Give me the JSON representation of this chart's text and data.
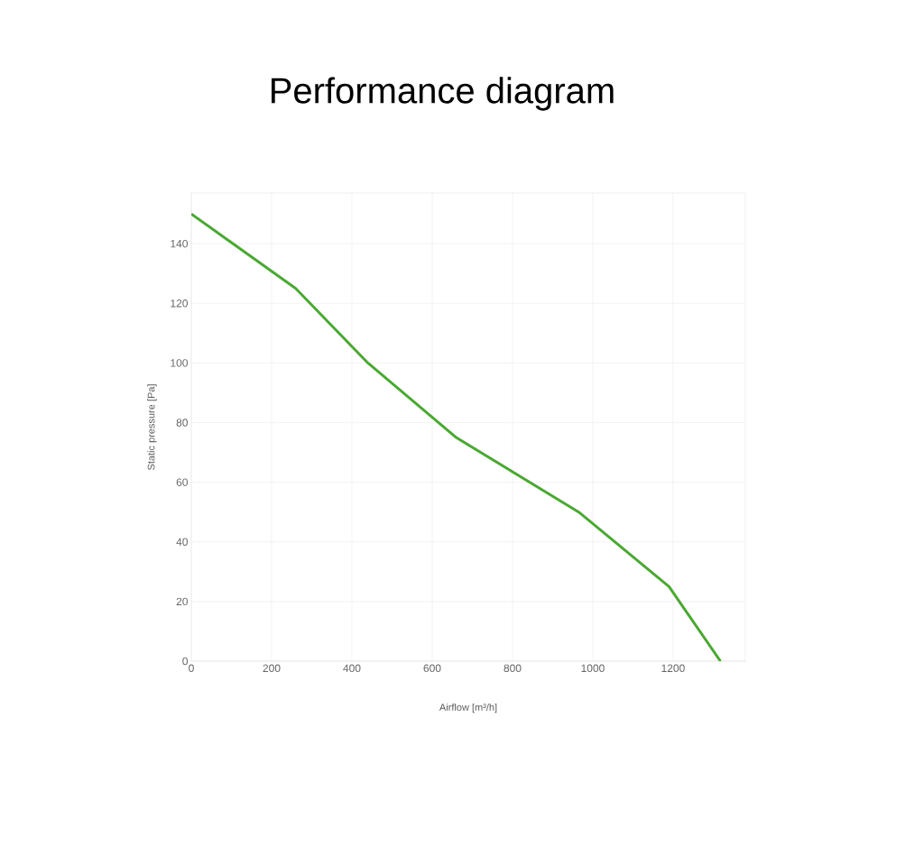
{
  "chart_data": {
    "type": "line",
    "title": "Performance diagram",
    "xlabel": "Airflow [m³/h]",
    "ylabel": "Static pressure [Pa]",
    "x": [
      0,
      260,
      440,
      660,
      965,
      1190,
      1318
    ],
    "series": [
      {
        "color": "#4aa832",
        "values": [
          150,
          125,
          100,
          75,
          50,
          25,
          0
        ]
      }
    ],
    "xlim": [
      0,
      1380
    ],
    "ylim": [
      0,
      157
    ],
    "xticks": [
      0,
      200,
      400,
      600,
      800,
      1000,
      1200
    ],
    "yticks": [
      0,
      20,
      40,
      60,
      80,
      100,
      120,
      140
    ],
    "grid": true,
    "marker": "none",
    "line_style": "solid"
  }
}
